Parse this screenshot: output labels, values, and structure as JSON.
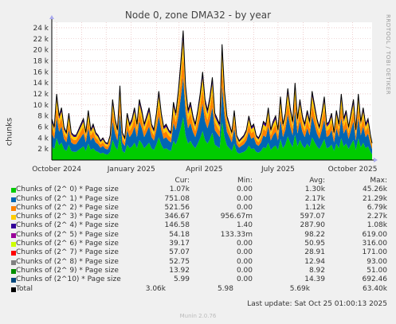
{
  "title": "Node 0, zone DMA32 - by year",
  "side_text": "RRDTOOL / TOBI OETIKER",
  "ylabel": "chunks",
  "chart_data": {
    "type": "area",
    "title": "Node 0, zone DMA32 - by year",
    "ylabel": "chunks",
    "ylim": [
      0,
      25000
    ],
    "y_ticks": [
      {
        "v": 2000,
        "label": "2 k"
      },
      {
        "v": 4000,
        "label": "4 k"
      },
      {
        "v": 6000,
        "label": "6 k"
      },
      {
        "v": 8000,
        "label": "8 k"
      },
      {
        "v": 10000,
        "label": "10 k"
      },
      {
        "v": 12000,
        "label": "12 k"
      },
      {
        "v": 14000,
        "label": "14 k"
      },
      {
        "v": 16000,
        "label": "16 k"
      },
      {
        "v": 18000,
        "label": "18 k"
      },
      {
        "v": 20000,
        "label": "20 k"
      },
      {
        "v": 22000,
        "label": "22 k"
      },
      {
        "v": 24000,
        "label": "24 k"
      }
    ],
    "x_ticks": [
      "October 2024",
      "January 2025",
      "April 2025",
      "July 2025",
      "October 2025"
    ],
    "x_range": [
      "2024-09-25",
      "2025-10-25"
    ],
    "grid": true,
    "stacked": true,
    "total_profile": [
      [
        "2024-09-25",
        7500
      ],
      [
        "2024-09-28",
        6000
      ],
      [
        "2024-10-01",
        12000
      ],
      [
        "2024-10-04",
        8000
      ],
      [
        "2024-10-07",
        9500
      ],
      [
        "2024-10-10",
        6000
      ],
      [
        "2024-10-13",
        5000
      ],
      [
        "2024-10-16",
        8500
      ],
      [
        "2024-10-19",
        5000
      ],
      [
        "2024-10-22",
        4500
      ],
      [
        "2024-10-25",
        4500
      ],
      [
        "2024-10-28",
        5500
      ],
      [
        "2024-10-31",
        6500
      ],
      [
        "2024-11-03",
        7500
      ],
      [
        "2024-11-06",
        5000
      ],
      [
        "2024-11-09",
        9000
      ],
      [
        "2024-11-12",
        5500
      ],
      [
        "2024-11-15",
        6500
      ],
      [
        "2024-11-18",
        5000
      ],
      [
        "2024-11-21",
        4500
      ],
      [
        "2024-11-24",
        3500
      ],
      [
        "2024-11-27",
        4000
      ],
      [
        "2024-11-30",
        3200
      ],
      [
        "2024-12-03",
        3000
      ],
      [
        "2024-12-06",
        4500
      ],
      [
        "2024-12-09",
        11000
      ],
      [
        "2024-12-12",
        7500
      ],
      [
        "2024-12-15",
        5500
      ],
      [
        "2024-12-18",
        13500
      ],
      [
        "2024-12-21",
        5000
      ],
      [
        "2024-12-24",
        4000
      ],
      [
        "2024-12-27",
        8500
      ],
      [
        "2024-12-30",
        6500
      ],
      [
        "2025-01-02",
        7500
      ],
      [
        "2025-01-05",
        9500
      ],
      [
        "2025-01-08",
        6500
      ],
      [
        "2025-01-11",
        11000
      ],
      [
        "2025-01-14",
        9000
      ],
      [
        "2025-01-17",
        6500
      ],
      [
        "2025-01-20",
        8000
      ],
      [
        "2025-01-23",
        9500
      ],
      [
        "2025-01-26",
        6500
      ],
      [
        "2025-01-29",
        5500
      ],
      [
        "2025-02-01",
        8500
      ],
      [
        "2025-02-04",
        12500
      ],
      [
        "2025-02-07",
        8500
      ],
      [
        "2025-02-10",
        6000
      ],
      [
        "2025-02-13",
        6500
      ],
      [
        "2025-02-16",
        5500
      ],
      [
        "2025-02-19",
        5000
      ],
      [
        "2025-02-22",
        10500
      ],
      [
        "2025-02-25",
        8500
      ],
      [
        "2025-02-28",
        12500
      ],
      [
        "2025-03-03",
        17500
      ],
      [
        "2025-03-06",
        23500
      ],
      [
        "2025-03-09",
        13500
      ],
      [
        "2025-03-12",
        9000
      ],
      [
        "2025-03-15",
        10500
      ],
      [
        "2025-03-18",
        8000
      ],
      [
        "2025-03-21",
        6500
      ],
      [
        "2025-03-24",
        9000
      ],
      [
        "2025-03-27",
        12000
      ],
      [
        "2025-03-30",
        16000
      ],
      [
        "2025-04-02",
        11000
      ],
      [
        "2025-04-05",
        9000
      ],
      [
        "2025-04-08",
        11500
      ],
      [
        "2025-04-11",
        15000
      ],
      [
        "2025-04-14",
        8500
      ],
      [
        "2025-04-17",
        7500
      ],
      [
        "2025-04-20",
        6500
      ],
      [
        "2025-04-23",
        21000
      ],
      [
        "2025-04-26",
        12500
      ],
      [
        "2025-04-29",
        8000
      ],
      [
        "2025-05-02",
        6500
      ],
      [
        "2025-05-05",
        5000
      ],
      [
        "2025-05-08",
        9000
      ],
      [
        "2025-05-11",
        4500
      ],
      [
        "2025-05-14",
        3500
      ],
      [
        "2025-05-17",
        4000
      ],
      [
        "2025-05-20",
        4500
      ],
      [
        "2025-05-23",
        5500
      ],
      [
        "2025-05-26",
        8000
      ],
      [
        "2025-05-29",
        6000
      ],
      [
        "2025-06-01",
        6500
      ],
      [
        "2025-06-04",
        4500
      ],
      [
        "2025-06-07",
        4000
      ],
      [
        "2025-06-10",
        5000
      ],
      [
        "2025-06-13",
        7000
      ],
      [
        "2025-06-16",
        6500
      ],
      [
        "2025-06-19",
        9500
      ],
      [
        "2025-06-22",
        5500
      ],
      [
        "2025-06-25",
        7000
      ],
      [
        "2025-06-28",
        8000
      ],
      [
        "2025-07-01",
        5500
      ],
      [
        "2025-07-04",
        11500
      ],
      [
        "2025-07-07",
        6500
      ],
      [
        "2025-07-10",
        8500
      ],
      [
        "2025-07-13",
        13000
      ],
      [
        "2025-07-16",
        9500
      ],
      [
        "2025-07-19",
        7000
      ],
      [
        "2025-07-22",
        14000
      ],
      [
        "2025-07-25",
        7500
      ],
      [
        "2025-07-28",
        11000
      ],
      [
        "2025-07-31",
        8000
      ],
      [
        "2025-08-03",
        6500
      ],
      [
        "2025-08-06",
        9000
      ],
      [
        "2025-08-09",
        7000
      ],
      [
        "2025-08-12",
        12500
      ],
      [
        "2025-08-15",
        10000
      ],
      [
        "2025-08-18",
        7500
      ],
      [
        "2025-08-21",
        6000
      ],
      [
        "2025-08-24",
        8500
      ],
      [
        "2025-08-27",
        11500
      ],
      [
        "2025-08-30",
        6500
      ],
      [
        "2025-09-02",
        7000
      ],
      [
        "2025-09-05",
        8500
      ],
      [
        "2025-09-08",
        5000
      ],
      [
        "2025-09-11",
        9000
      ],
      [
        "2025-09-14",
        6500
      ],
      [
        "2025-09-17",
        12000
      ],
      [
        "2025-09-20",
        7500
      ],
      [
        "2025-09-23",
        9000
      ],
      [
        "2025-09-26",
        6000
      ],
      [
        "2025-09-29",
        8500
      ],
      [
        "2025-10-02",
        11000
      ],
      [
        "2025-10-05",
        5500
      ],
      [
        "2025-10-08",
        12000
      ],
      [
        "2025-10-11",
        7000
      ],
      [
        "2025-10-14",
        9500
      ],
      [
        "2025-10-17",
        6500
      ],
      [
        "2025-10-20",
        7500
      ],
      [
        "2025-10-23",
        4500
      ],
      [
        "2025-10-25",
        3060
      ]
    ],
    "series_fractions": [
      0.33,
      0.31,
      0.17,
      0.12,
      0.05,
      0.02
    ]
  },
  "legend": {
    "headers": {
      "cur": "Cur:",
      "min": "Min:",
      "avg": "Avg:",
      "max": "Max:"
    },
    "rows": [
      {
        "name": "Chunks of (2^ 0) * Page size",
        "color": "#00cc00",
        "cur": "1.07k",
        "min": "0.00",
        "avg": "1.30k",
        "max": "45.26k"
      },
      {
        "name": "Chunks of (2^ 1) * Page size",
        "color": "#0066b3",
        "cur": "751.08",
        "min": "0.00",
        "avg": "2.17k",
        "max": "21.29k"
      },
      {
        "name": "Chunks of (2^ 2) * Page size",
        "color": "#ff8000",
        "cur": "521.56",
        "min": "0.00",
        "avg": "1.12k",
        "max": "6.79k"
      },
      {
        "name": "Chunks of (2^ 3) * Page size",
        "color": "#ffcc00",
        "cur": "346.67",
        "min": "956.67m",
        "avg": "597.07",
        "max": "2.27k"
      },
      {
        "name": "Chunks of (2^ 4) * Page size",
        "color": "#330099",
        "cur": "146.58",
        "min": "1.40",
        "avg": "287.90",
        "max": "1.08k"
      },
      {
        "name": "Chunks of (2^ 5) * Page size",
        "color": "#990099",
        "cur": "54.18",
        "min": "133.33m",
        "avg": "98.22",
        "max": "619.00"
      },
      {
        "name": "Chunks of (2^ 6) * Page size",
        "color": "#ccff00",
        "cur": "39.17",
        "min": "0.00",
        "avg": "50.95",
        "max": "316.00"
      },
      {
        "name": "Chunks of (2^ 7) * Page size",
        "color": "#ff0000",
        "cur": "57.07",
        "min": "0.00",
        "avg": "28.91",
        "max": "171.00"
      },
      {
        "name": "Chunks of (2^ 8) * Page size",
        "color": "#808080",
        "cur": "52.75",
        "min": "0.00",
        "avg": "12.94",
        "max": "93.00"
      },
      {
        "name": "Chunks of (2^ 9) * Page size",
        "color": "#008f00",
        "cur": "13.92",
        "min": "0.00",
        "avg": "8.92",
        "max": "51.00"
      },
      {
        "name": "Chunks of (2^10) * Page size",
        "color": "#00487d",
        "cur": "5.99",
        "min": "0.00",
        "avg": "14.39",
        "max": "692.46"
      }
    ],
    "total": {
      "name": "Total",
      "color": "#000000",
      "cur": "3.06k",
      "min": "5.98",
      "avg": "5.69k",
      "max": "63.40k"
    }
  },
  "last_update": "Last update: Sat Oct 25 01:00:13 2025",
  "footer": "Munin 2.0.76"
}
